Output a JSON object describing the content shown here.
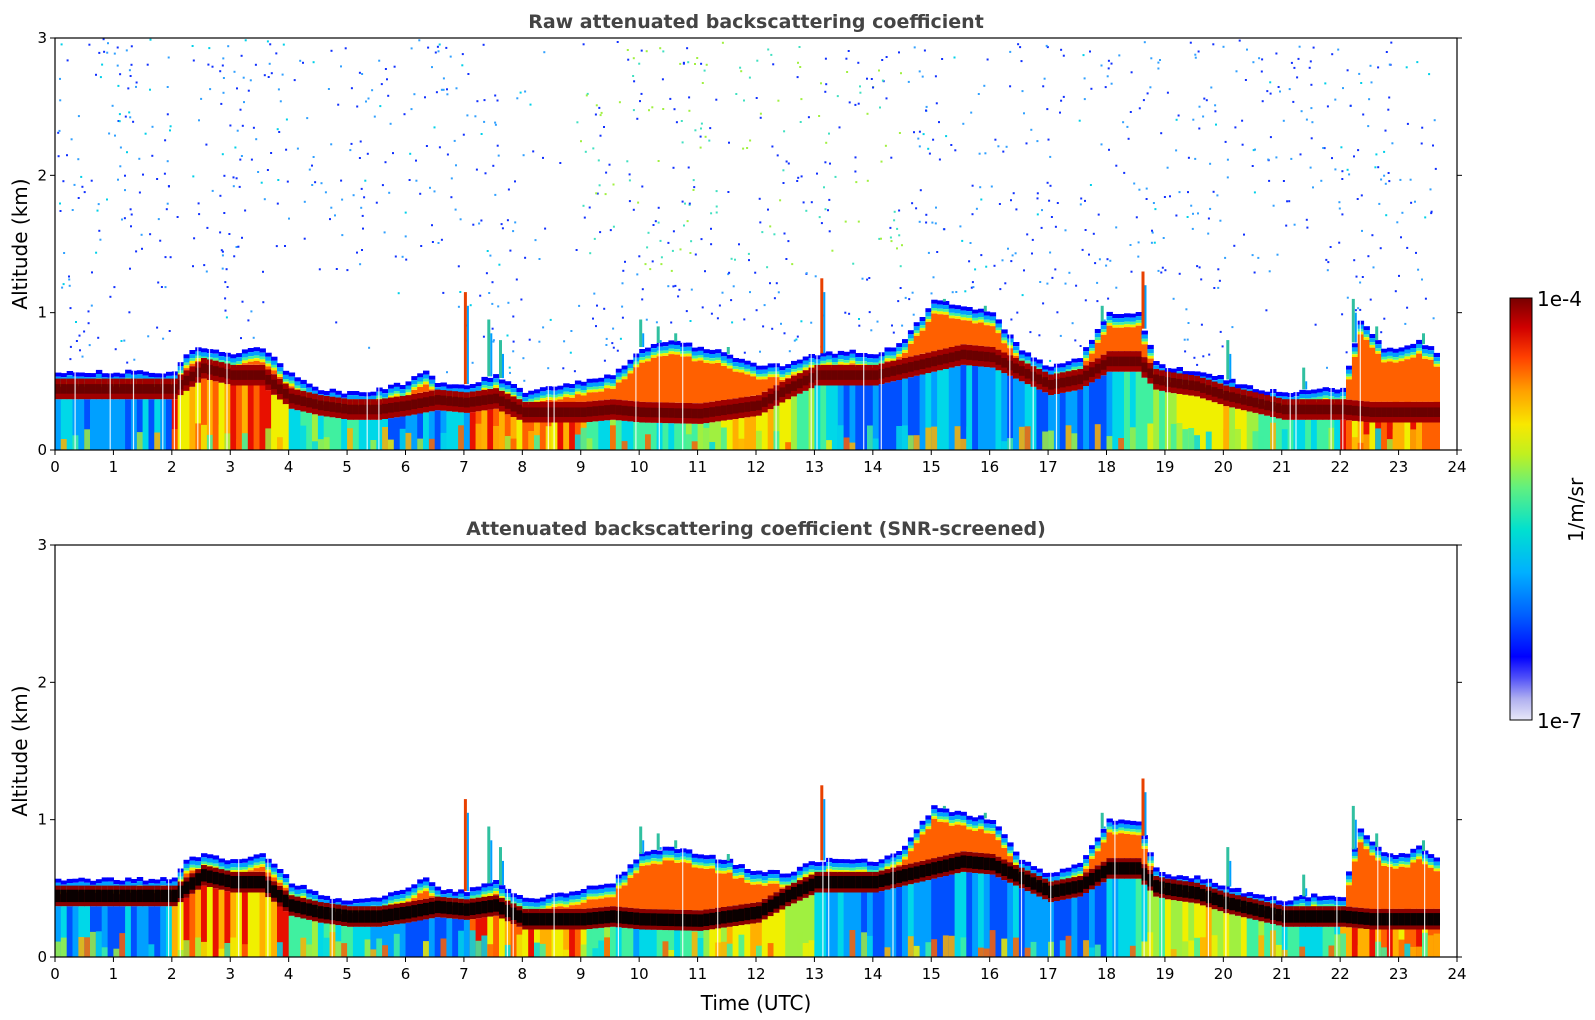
{
  "chart_data": [
    {
      "type": "heatmap",
      "title": "Raw attenuated backscattering coefficient",
      "xlabel": "",
      "ylabel": "Altitude (km)",
      "xlim": [
        0,
        24
      ],
      "ylim": [
        0,
        3
      ],
      "x_ticks": [
        "0",
        "1",
        "2",
        "3",
        "4",
        "5",
        "6",
        "7",
        "8",
        "9",
        "10",
        "11",
        "12",
        "13",
        "14",
        "15",
        "16",
        "17",
        "18",
        "19",
        "20",
        "21",
        "22",
        "23",
        "24"
      ],
      "y_ticks": [
        "0",
        "1",
        "2",
        "3"
      ],
      "data_end_hour": 23.65,
      "screened": false,
      "layer_top_km": [
        [
          0,
          0.57
        ],
        [
          0.5,
          0.57
        ],
        [
          1,
          0.57
        ],
        [
          1.5,
          0.57
        ],
        [
          2,
          0.57
        ],
        [
          2.2,
          0.7
        ],
        [
          2.5,
          0.75
        ],
        [
          3,
          0.7
        ],
        [
          3.5,
          0.75
        ],
        [
          4,
          0.55
        ],
        [
          4.5,
          0.45
        ],
        [
          5,
          0.42
        ],
        [
          5.5,
          0.44
        ],
        [
          6,
          0.5
        ],
        [
          6.3,
          0.58
        ],
        [
          6.5,
          0.5
        ],
        [
          7,
          0.48
        ],
        [
          7.5,
          0.55
        ],
        [
          8,
          0.42
        ],
        [
          8.5,
          0.46
        ],
        [
          9,
          0.5
        ],
        [
          9.5,
          0.55
        ],
        [
          10,
          0.75
        ],
        [
          10.5,
          0.8
        ],
        [
          11,
          0.75
        ],
        [
          11.5,
          0.7
        ],
        [
          12,
          0.62
        ],
        [
          12.5,
          0.62
        ],
        [
          13,
          0.7
        ],
        [
          13.5,
          0.72
        ],
        [
          14,
          0.7
        ],
        [
          14.5,
          0.8
        ],
        [
          15,
          1.1
        ],
        [
          15.5,
          1.05
        ],
        [
          16,
          1.0
        ],
        [
          16.5,
          0.72
        ],
        [
          17,
          0.6
        ],
        [
          17.5,
          0.68
        ],
        [
          18,
          1.0
        ],
        [
          18.5,
          1.0
        ],
        [
          18.8,
          0.65
        ],
        [
          19,
          0.6
        ],
        [
          19.5,
          0.58
        ],
        [
          20,
          0.52
        ],
        [
          20.5,
          0.45
        ],
        [
          21,
          0.42
        ],
        [
          21.5,
          0.45
        ],
        [
          22,
          0.45
        ],
        [
          22.3,
          0.95
        ],
        [
          22.7,
          0.75
        ],
        [
          23,
          0.75
        ],
        [
          23.3,
          0.8
        ],
        [
          23.65,
          0.7
        ]
      ],
      "layer_center_km": [
        [
          0,
          0.45
        ],
        [
          2,
          0.45
        ],
        [
          2.5,
          0.6
        ],
        [
          3,
          0.55
        ],
        [
          3.5,
          0.55
        ],
        [
          4,
          0.38
        ],
        [
          4.5,
          0.33
        ],
        [
          5,
          0.3
        ],
        [
          5.5,
          0.3
        ],
        [
          6,
          0.33
        ],
        [
          6.5,
          0.37
        ],
        [
          7,
          0.35
        ],
        [
          7.5,
          0.38
        ],
        [
          8,
          0.28
        ],
        [
          8.5,
          0.28
        ],
        [
          9,
          0.28
        ],
        [
          9.5,
          0.3
        ],
        [
          10,
          0.28
        ],
        [
          11,
          0.27
        ],
        [
          12,
          0.33
        ],
        [
          12.5,
          0.45
        ],
        [
          13,
          0.55
        ],
        [
          14,
          0.55
        ],
        [
          14.5,
          0.6
        ],
        [
          15,
          0.65
        ],
        [
          15.5,
          0.7
        ],
        [
          16,
          0.68
        ],
        [
          16.5,
          0.58
        ],
        [
          17,
          0.48
        ],
        [
          17.5,
          0.52
        ],
        [
          18,
          0.65
        ],
        [
          18.5,
          0.65
        ],
        [
          18.8,
          0.52
        ],
        [
          19,
          0.5
        ],
        [
          19.5,
          0.47
        ],
        [
          20,
          0.4
        ],
        [
          20.5,
          0.35
        ],
        [
          21,
          0.3
        ],
        [
          21.5,
          0.3
        ],
        [
          22,
          0.3
        ],
        [
          22.5,
          0.28
        ],
        [
          23,
          0.28
        ],
        [
          23.65,
          0.28
        ]
      ]
    },
    {
      "type": "heatmap",
      "title": "Attenuated backscattering coefficient (SNR-screened)",
      "xlabel": "Time (UTC)",
      "ylabel": "Altitude (km)",
      "xlim": [
        0,
        24
      ],
      "ylim": [
        0,
        3
      ],
      "x_ticks": [
        "0",
        "1",
        "2",
        "3",
        "4",
        "5",
        "6",
        "7",
        "8",
        "9",
        "10",
        "11",
        "12",
        "13",
        "14",
        "15",
        "16",
        "17",
        "18",
        "19",
        "20",
        "21",
        "22",
        "23",
        "24"
      ],
      "y_ticks": [
        "0",
        "1",
        "2",
        "3"
      ],
      "data_end_hour": 23.65,
      "screened": true
    }
  ],
  "colorbar": {
    "label": "1/m/sr",
    "max_label": "1e-4",
    "min_label": "1e-7",
    "scale": "log",
    "colormap": [
      "#e8e8f8",
      "#b0b0f0",
      "#6a6af5",
      "#0000ff",
      "#0050ff",
      "#00a0ff",
      "#00e0e0",
      "#40f0a0",
      "#a0f040",
      "#f0f000",
      "#ffb000",
      "#ff6000",
      "#e81000",
      "#b00000",
      "#7a0000"
    ]
  }
}
